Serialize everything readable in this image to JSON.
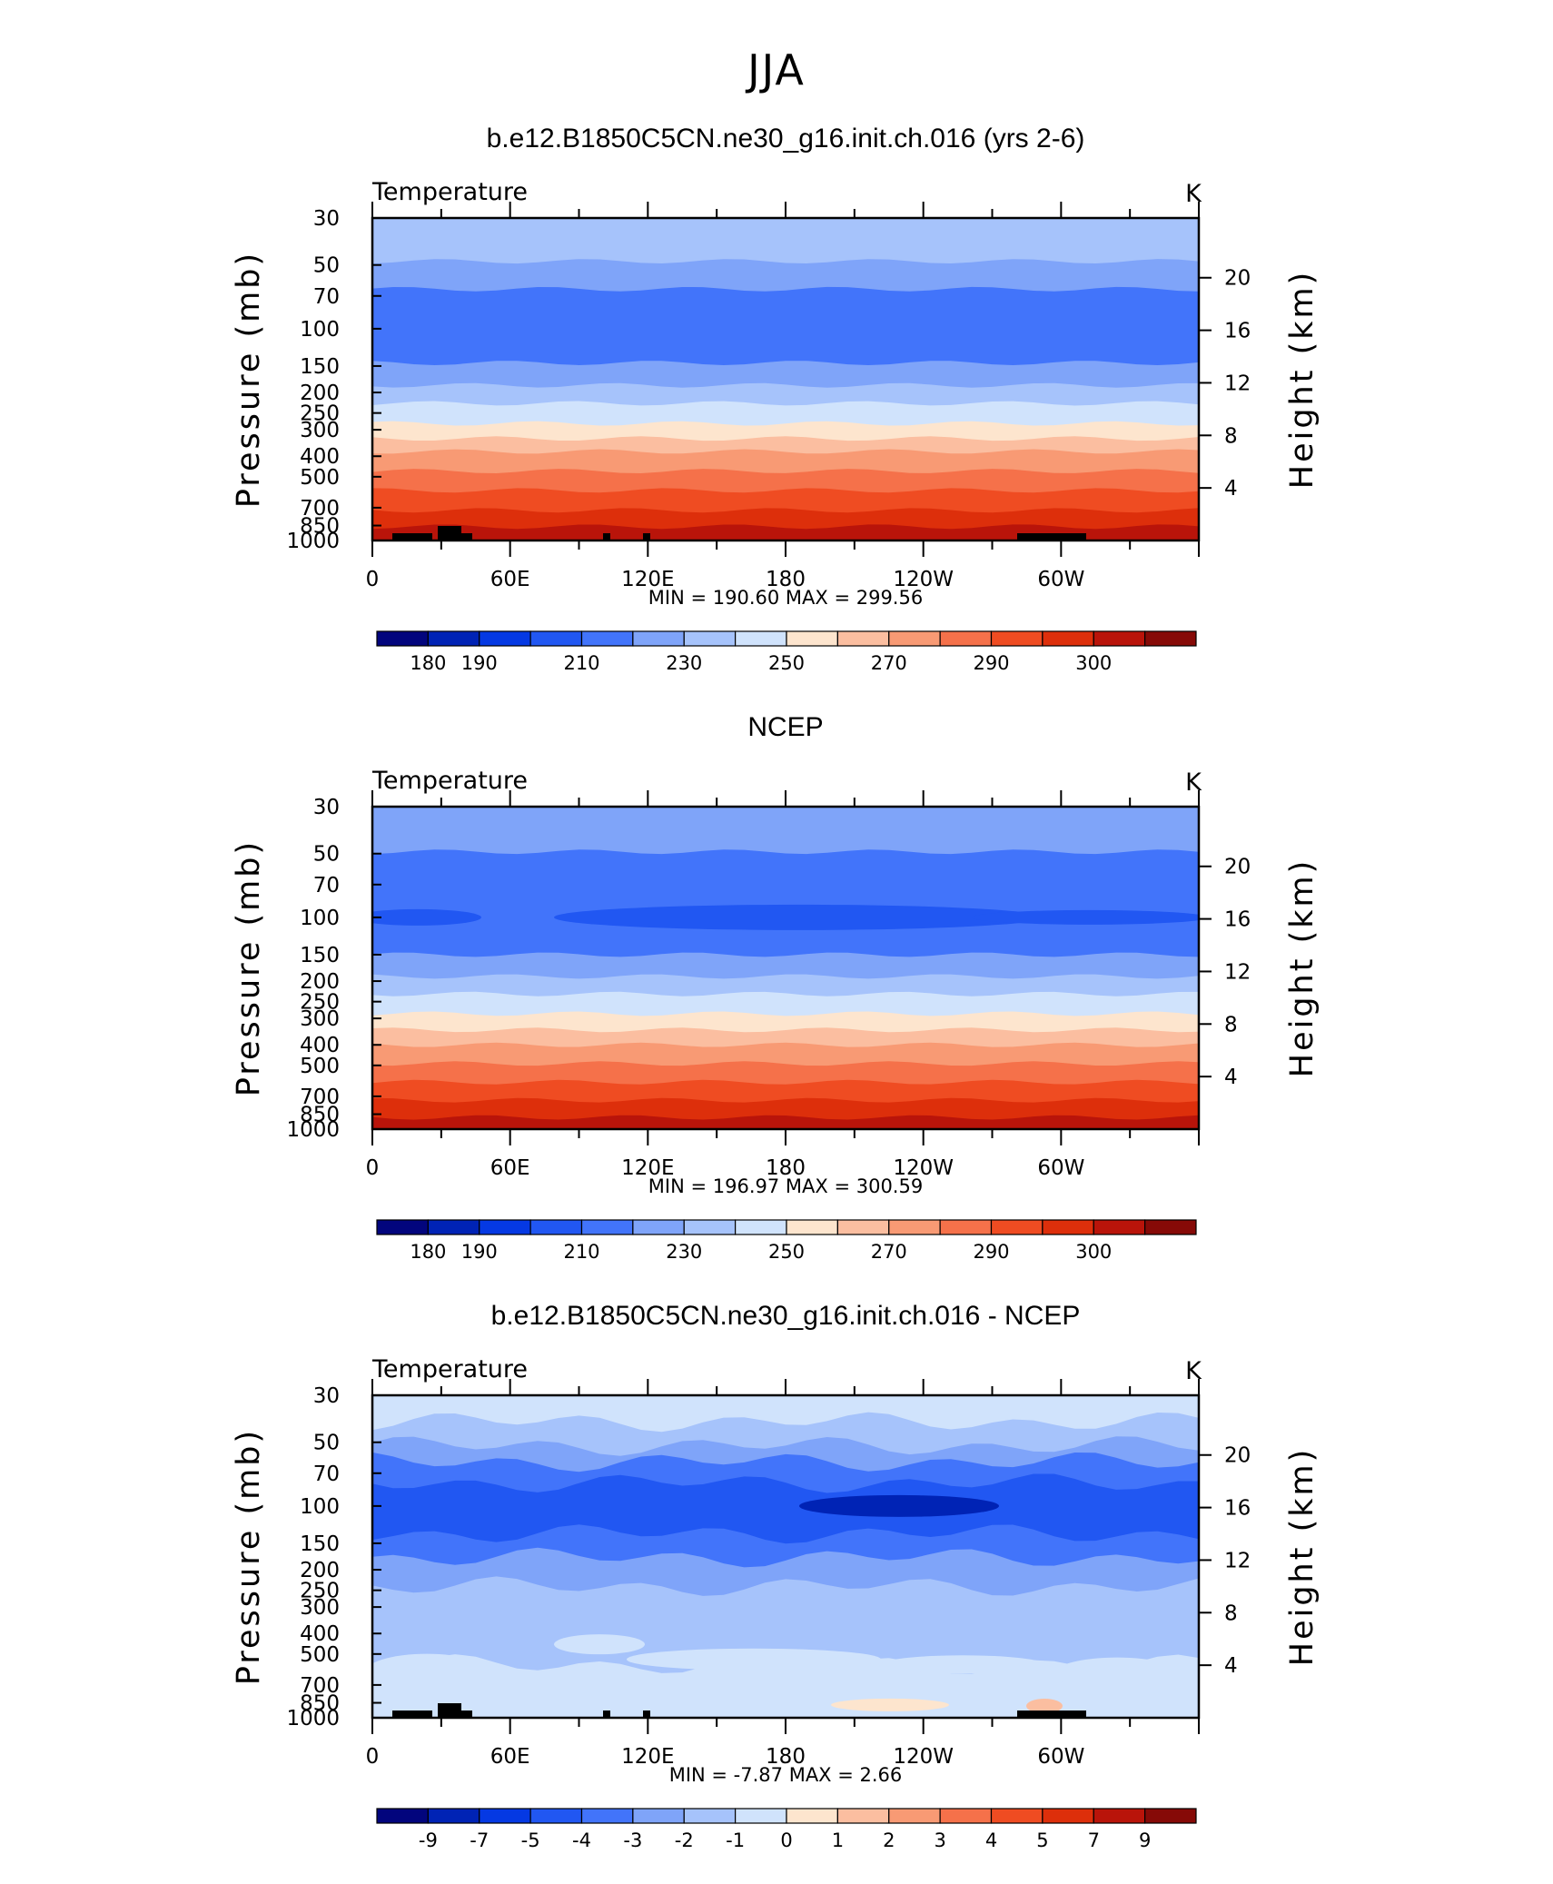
{
  "page_title": "JJA",
  "chart_data": [
    {
      "type": "heatmap",
      "title": "b.e12.B1850C5CN.ne30_g16.init.ch.016 (yrs 2-6)",
      "variable_label": "Temperature",
      "units_label": "K",
      "ylabel": "Pressure (mb)",
      "ylabel_right": "Height (km)",
      "pressure_ticks": [
        30,
        50,
        70,
        100,
        150,
        200,
        250,
        300,
        400,
        500,
        700,
        850,
        1000
      ],
      "height_ticks": [
        4,
        8,
        12,
        16,
        20
      ],
      "x_ticks": [
        "0",
        "60E",
        "120E",
        "180",
        "120W",
        "60W"
      ],
      "stats_text": "MIN = 190.60   MAX = 299.56",
      "min": 190.6,
      "max": 299.56,
      "colorbar_labels": [
        "180",
        "190",
        "210",
        "230",
        "250",
        "270",
        "290",
        "300"
      ],
      "colorbar_colors": [
        "#02057d",
        "#0023b5",
        "#0539e3",
        "#2157f2",
        "#4274fa",
        "#7fa4f9",
        "#a6c3fb",
        "#d0e3fc",
        "#fde5ce",
        "#fbbea0",
        "#f89a74",
        "#f5714a",
        "#ef4c22",
        "#dd2f0b",
        "#b9140a",
        "#860a07"
      ],
      "approx_levels": [
        {
          "p": 30,
          "class": 6
        },
        {
          "p": 48,
          "class": 5
        },
        {
          "p": 65,
          "class": 4
        },
        {
          "p": 145,
          "class": 5
        },
        {
          "p": 185,
          "class": 6
        },
        {
          "p": 225,
          "class": 7
        },
        {
          "p": 280,
          "class": 8
        },
        {
          "p": 330,
          "class": 9
        },
        {
          "p": 380,
          "class": 10
        },
        {
          "p": 470,
          "class": 11
        },
        {
          "p": 580,
          "class": 12
        },
        {
          "p": 720,
          "class": 13
        },
        {
          "p": 860,
          "class": 14
        }
      ]
    },
    {
      "type": "heatmap",
      "title": "NCEP",
      "variable_label": "Temperature",
      "units_label": "K",
      "ylabel": "Pressure (mb)",
      "ylabel_right": "Height (km)",
      "pressure_ticks": [
        30,
        50,
        70,
        100,
        150,
        200,
        250,
        300,
        400,
        500,
        700,
        850,
        1000
      ],
      "height_ticks": [
        4,
        8,
        12,
        16,
        20
      ],
      "x_ticks": [
        "0",
        "60E",
        "120E",
        "180",
        "120W",
        "60W"
      ],
      "stats_text": "MIN = 196.97   MAX = 300.59",
      "min": 196.97,
      "max": 300.59,
      "colorbar_labels": [
        "180",
        "190",
        "210",
        "230",
        "250",
        "270",
        "290",
        "300"
      ],
      "colorbar_colors": [
        "#02057d",
        "#0023b5",
        "#0539e3",
        "#2157f2",
        "#4274fa",
        "#7fa4f9",
        "#a6c3fb",
        "#d0e3fc",
        "#fde5ce",
        "#fbbea0",
        "#f89a74",
        "#f5714a",
        "#ef4c22",
        "#dd2f0b",
        "#b9140a",
        "#860a07"
      ],
      "approx_levels": [
        {
          "p": 30,
          "class": 5
        },
        {
          "p": 49,
          "class": 4
        },
        {
          "p": 150,
          "class": 5
        },
        {
          "p": 190,
          "class": 6
        },
        {
          "p": 230,
          "class": 7
        },
        {
          "p": 285,
          "class": 8
        },
        {
          "p": 340,
          "class": 9
        },
        {
          "p": 400,
          "class": 10
        },
        {
          "p": 490,
          "class": 11
        },
        {
          "p": 600,
          "class": 12
        },
        {
          "p": 730,
          "class": 13
        },
        {
          "p": 880,
          "class": 14
        }
      ]
    },
    {
      "type": "heatmap",
      "title": "b.e12.B1850C5CN.ne30_g16.init.ch.016 - NCEP",
      "variable_label": "Temperature",
      "units_label": "K",
      "ylabel": "Pressure (mb)",
      "ylabel_right": "Height (km)",
      "pressure_ticks": [
        30,
        50,
        70,
        100,
        150,
        200,
        250,
        300,
        400,
        500,
        700,
        850,
        1000
      ],
      "height_ticks": [
        4,
        8,
        12,
        16,
        20
      ],
      "x_ticks": [
        "0",
        "60E",
        "120E",
        "180",
        "120W",
        "60W"
      ],
      "stats_text": "MIN = -7.87   MAX = 2.66",
      "min": -7.87,
      "max": 2.66,
      "colorbar_labels": [
        "-9",
        "-7",
        "-5",
        "-4",
        "-3",
        "-2",
        "-1",
        "0",
        "1",
        "2",
        "3",
        "4",
        "5",
        "7",
        "9"
      ],
      "colorbar_colors": [
        "#02057d",
        "#0023b5",
        "#0539e3",
        "#2157f2",
        "#4274fa",
        "#7fa4f9",
        "#a6c3fb",
        "#d0e3fc",
        "#fde5ce",
        "#fbbea0",
        "#f89a74",
        "#f5714a",
        "#ef4c22",
        "#dd2f0b",
        "#b9140a",
        "#860a07"
      ],
      "approx_levels": [
        {
          "p": 30,
          "class": 7
        },
        {
          "p": 40,
          "class": 6
        },
        {
          "p": 52,
          "class": 5
        },
        {
          "p": 62,
          "class": 4
        },
        {
          "p": 78,
          "class": 3
        },
        {
          "p": 135,
          "class": 4
        },
        {
          "p": 175,
          "class": 5
        },
        {
          "p": 240,
          "class": 6
        },
        {
          "p": 560,
          "class": 7
        }
      ]
    }
  ]
}
